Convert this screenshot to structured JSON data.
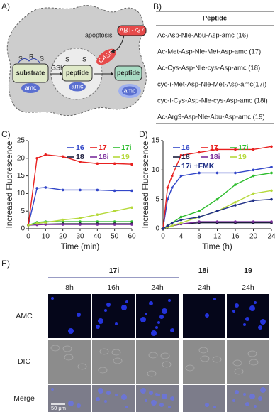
{
  "panel_labels": [
    "A)",
    "B)",
    "C)",
    "D)",
    "E)"
  ],
  "diagram": {
    "substrate": "substrate",
    "substrate_linker": [
      "S",
      "R",
      "S"
    ],
    "gsh": "GSH",
    "peptide_linker": [
      "S",
      "S"
    ],
    "peptide": [
      "peptide",
      "peptide"
    ],
    "amc": [
      "amc",
      "amc",
      "amc"
    ],
    "casp": "CASP",
    "apoptosis": "apoptosis",
    "drug": "ABT-737"
  },
  "table": {
    "header": "Peptide",
    "rows": [
      "Ac-Asp-Nle-Abu-Asp-amc (16)",
      "Ac-Met-Asp-Nle-Met-Asp-amc (17)",
      "Ac-Cys-Asp-Nle-cys-Asp-amc (18)",
      "cyc-i-Met-Asp-Nle-Met-Asp-amc(17i)",
      "cyc-i-Cys-Asp-Nle-cys-Asp-amc (18i)",
      "Ac-Arg9-Asp-Nle-Abu-Asp-amc (19)"
    ]
  },
  "chart_data": [
    {
      "type": "line",
      "y_label": "Increased Fluorescence",
      "x_label": "Time (min)",
      "x": [
        0,
        5,
        10,
        20,
        30,
        40,
        50,
        60
      ],
      "xlim": [
        0,
        60
      ],
      "xticks": [
        0,
        10,
        20,
        30,
        40,
        50,
        60
      ],
      "ylim": [
        0,
        25
      ],
      "yticks": [
        0,
        5,
        10,
        15,
        20,
        25
      ],
      "series": [
        {
          "name": "16",
          "color": "#3246c8",
          "values": [
            1,
            11.5,
            11.7,
            11,
            11,
            11,
            10.8,
            10.8
          ]
        },
        {
          "name": "17",
          "color": "#e8201f",
          "values": [
            1,
            20,
            21,
            20.5,
            19,
            18.5,
            18.5,
            18.3
          ]
        },
        {
          "name": "17i",
          "color": "#2ebd2e",
          "values": [
            1,
            1.8,
            2,
            2,
            2,
            2,
            2,
            2
          ]
        },
        {
          "name": "18",
          "color": "#1c1c3c",
          "values": [
            1,
            1.3,
            1.3,
            1.4,
            1.4,
            1.4,
            1.4,
            1.4
          ]
        },
        {
          "name": "18i",
          "color": "#7b2d9c",
          "values": [
            1,
            1.1,
            1.2,
            1.2,
            1.2,
            1.2,
            1.2,
            1.2
          ]
        },
        {
          "name": "19",
          "color": "#b5d93a",
          "values": [
            1,
            1.5,
            1.8,
            2.5,
            3,
            4,
            5,
            6
          ]
        }
      ]
    },
    {
      "type": "line",
      "y_label": "Increased Fluorescence",
      "x_label": "Time (h)",
      "x": [
        0,
        1,
        2,
        4,
        8,
        12,
        16,
        20,
        24
      ],
      "xlim": [
        0,
        24
      ],
      "xticks": [
        0,
        4,
        8,
        12,
        16,
        20,
        24
      ],
      "ylim": [
        0,
        15
      ],
      "yticks": [
        0,
        5,
        10,
        15
      ],
      "series": [
        {
          "name": "16",
          "color": "#3246c8",
          "values": [
            0,
            5,
            7,
            9,
            9.5,
            9.5,
            9.5,
            10,
            10.5
          ]
        },
        {
          "name": "17",
          "color": "#e8201f",
          "values": [
            0,
            7,
            9,
            12.5,
            13,
            13.5,
            13.5,
            13.5,
            14
          ]
        },
        {
          "name": "17i",
          "color": "#2ebd2e",
          "values": [
            0,
            0.5,
            1,
            2,
            3,
            5,
            7.5,
            9,
            9.5
          ]
        },
        {
          "name": "18",
          "color": "#1c1c3c",
          "values": [
            0,
            0.3,
            0.5,
            0.8,
            1,
            1,
            1,
            1,
            1
          ]
        },
        {
          "name": "18i",
          "color": "#7b2d9c",
          "values": [
            0,
            0.3,
            0.5,
            0.8,
            1.2,
            1.2,
            1.2,
            1.2,
            1.2
          ]
        },
        {
          "name": "19",
          "color": "#b5d93a",
          "values": [
            0,
            0.3,
            0.5,
            1,
            2,
            3,
            4.5,
            6,
            6.5
          ]
        },
        {
          "name": "17i +FMK",
          "color": "#1f2f86",
          "values": [
            0,
            0.5,
            1,
            1.5,
            2,
            3,
            4,
            4.8,
            5
          ]
        }
      ]
    }
  ],
  "micrograph": {
    "groups": [
      "17i",
      "18i",
      "19"
    ],
    "times": [
      "8h",
      "16h",
      "24h",
      "24h",
      "24h"
    ],
    "rows": [
      "AMC",
      "DIC",
      "Merge"
    ],
    "scale_bar": "50 μm"
  }
}
